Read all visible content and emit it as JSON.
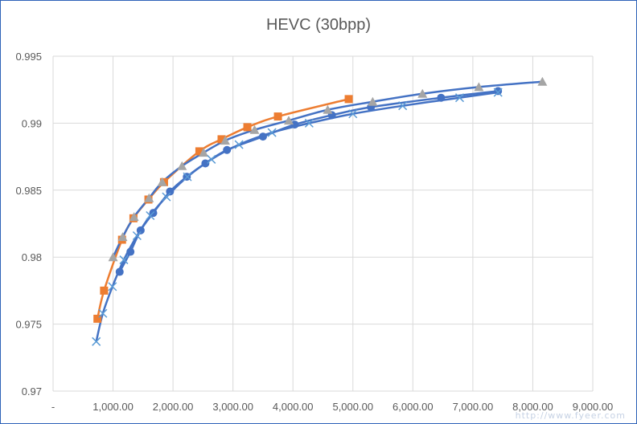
{
  "chart_data": {
    "type": "line",
    "title": "HEVC (30bpp)",
    "xlabel": "",
    "ylabel": "",
    "xlim": [
      0,
      9000
    ],
    "ylim": [
      0.97,
      0.995
    ],
    "x_ticks": [
      0,
      1000,
      2000,
      3000,
      4000,
      5000,
      6000,
      7000,
      8000,
      9000
    ],
    "x_tick_labels": [
      "-",
      "1,000.00",
      "2,000.00",
      "3,000.00",
      "4,000.00",
      "5,000.00",
      "6,000.00",
      "7,000.00",
      "8,000.00",
      "9,000.00"
    ],
    "y_ticks": [
      0.97,
      0.975,
      0.98,
      0.985,
      0.99,
      0.995
    ],
    "y_tick_labels": [
      "0.97",
      "0.975",
      "0.98",
      "0.985",
      "0.99",
      "0.995"
    ],
    "grid": true,
    "legend": "none",
    "series": [
      {
        "marker": "circle",
        "color": "#4472c4",
        "points": [
          [
            1110,
            0.9789
          ],
          [
            1290,
            0.9804
          ],
          [
            1460,
            0.982
          ],
          [
            1670,
            0.9833
          ],
          [
            1950,
            0.9849
          ],
          [
            2230,
            0.986
          ],
          [
            2540,
            0.987
          ],
          [
            2900,
            0.988
          ],
          [
            3500,
            0.989
          ],
          [
            4030,
            0.9899
          ],
          [
            4650,
            0.9906
          ],
          [
            5300,
            0.9912
          ],
          [
            6470,
            0.9919
          ],
          [
            7420,
            0.9924
          ]
        ]
      },
      {
        "marker": "square",
        "color": "#ed7d31",
        "points": [
          [
            740,
            0.9754
          ],
          [
            850,
            0.9775
          ],
          [
            1150,
            0.9813
          ],
          [
            1340,
            0.9829
          ],
          [
            1590,
            0.9843
          ],
          [
            1850,
            0.9856
          ],
          [
            2440,
            0.9879
          ],
          [
            2810,
            0.9888
          ],
          [
            3240,
            0.9897
          ],
          [
            3750,
            0.9905
          ],
          [
            4930,
            0.9918
          ]
        ]
      },
      {
        "marker": "triangle",
        "color": "#a5a5a5",
        "lineColor": "#4472c4",
        "points": [
          [
            1000,
            0.98
          ],
          [
            1160,
            0.9815
          ],
          [
            1350,
            0.983
          ],
          [
            1600,
            0.9844
          ],
          [
            1820,
            0.9856
          ],
          [
            2150,
            0.9868
          ],
          [
            2510,
            0.9878
          ],
          [
            2870,
            0.9887
          ],
          [
            3360,
            0.9895
          ],
          [
            3930,
            0.9902
          ],
          [
            4580,
            0.991
          ],
          [
            5330,
            0.9916
          ],
          [
            6160,
            0.9922
          ],
          [
            7100,
            0.9927
          ],
          [
            8160,
            0.9931
          ]
        ]
      },
      {
        "marker": "x",
        "color": "#5b9bd5",
        "lineColor": "#4472c4",
        "points": [
          [
            720,
            0.9737
          ],
          [
            830,
            0.9758
          ],
          [
            990,
            0.9778
          ],
          [
            1180,
            0.9798
          ],
          [
            1400,
            0.9816
          ],
          [
            1620,
            0.9831
          ],
          [
            1890,
            0.9845
          ],
          [
            2240,
            0.986
          ],
          [
            2640,
            0.9873
          ],
          [
            3100,
            0.9884
          ],
          [
            3650,
            0.9893
          ],
          [
            4270,
            0.99
          ],
          [
            5000,
            0.9907
          ],
          [
            5830,
            0.9913
          ],
          [
            6780,
            0.9919
          ],
          [
            7420,
            0.9923
          ]
        ]
      }
    ]
  },
  "watermark": "http://www.fyeer.com"
}
